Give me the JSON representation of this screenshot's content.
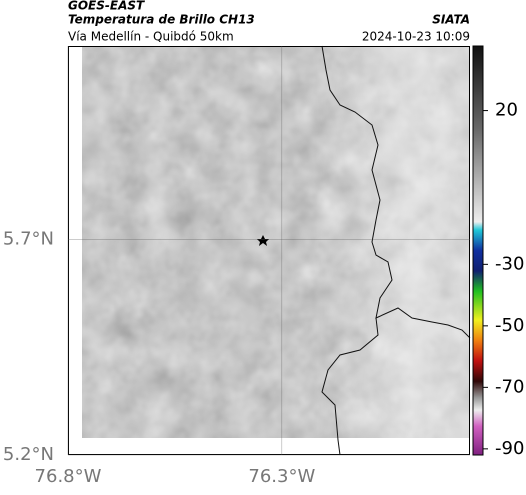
{
  "header": {
    "source": "GOES-EAST",
    "title": "Temperatura de Brillo CH13",
    "subtitle": "Vía Medellín - Quibdó 50km",
    "agency": "SIATA",
    "timestamp": "2024-10-23 10:09"
  },
  "map": {
    "lonlim": [
      -76.8,
      -75.86
    ],
    "latlim": [
      5.2,
      6.15
    ],
    "lon_ticks": [
      {
        "value": -76.8,
        "label": "76.8°W"
      },
      {
        "value": -76.3,
        "label": "76.3°W"
      }
    ],
    "lat_ticks": [
      {
        "value": 5.7,
        "label": "5.7°N"
      },
      {
        "value": 5.2,
        "label": "5.2°N"
      }
    ]
  },
  "colorbar": {
    "lim": [
      -92,
      41
    ],
    "ticks": [
      20,
      -30,
      -50,
      -70,
      -90
    ]
  }
}
